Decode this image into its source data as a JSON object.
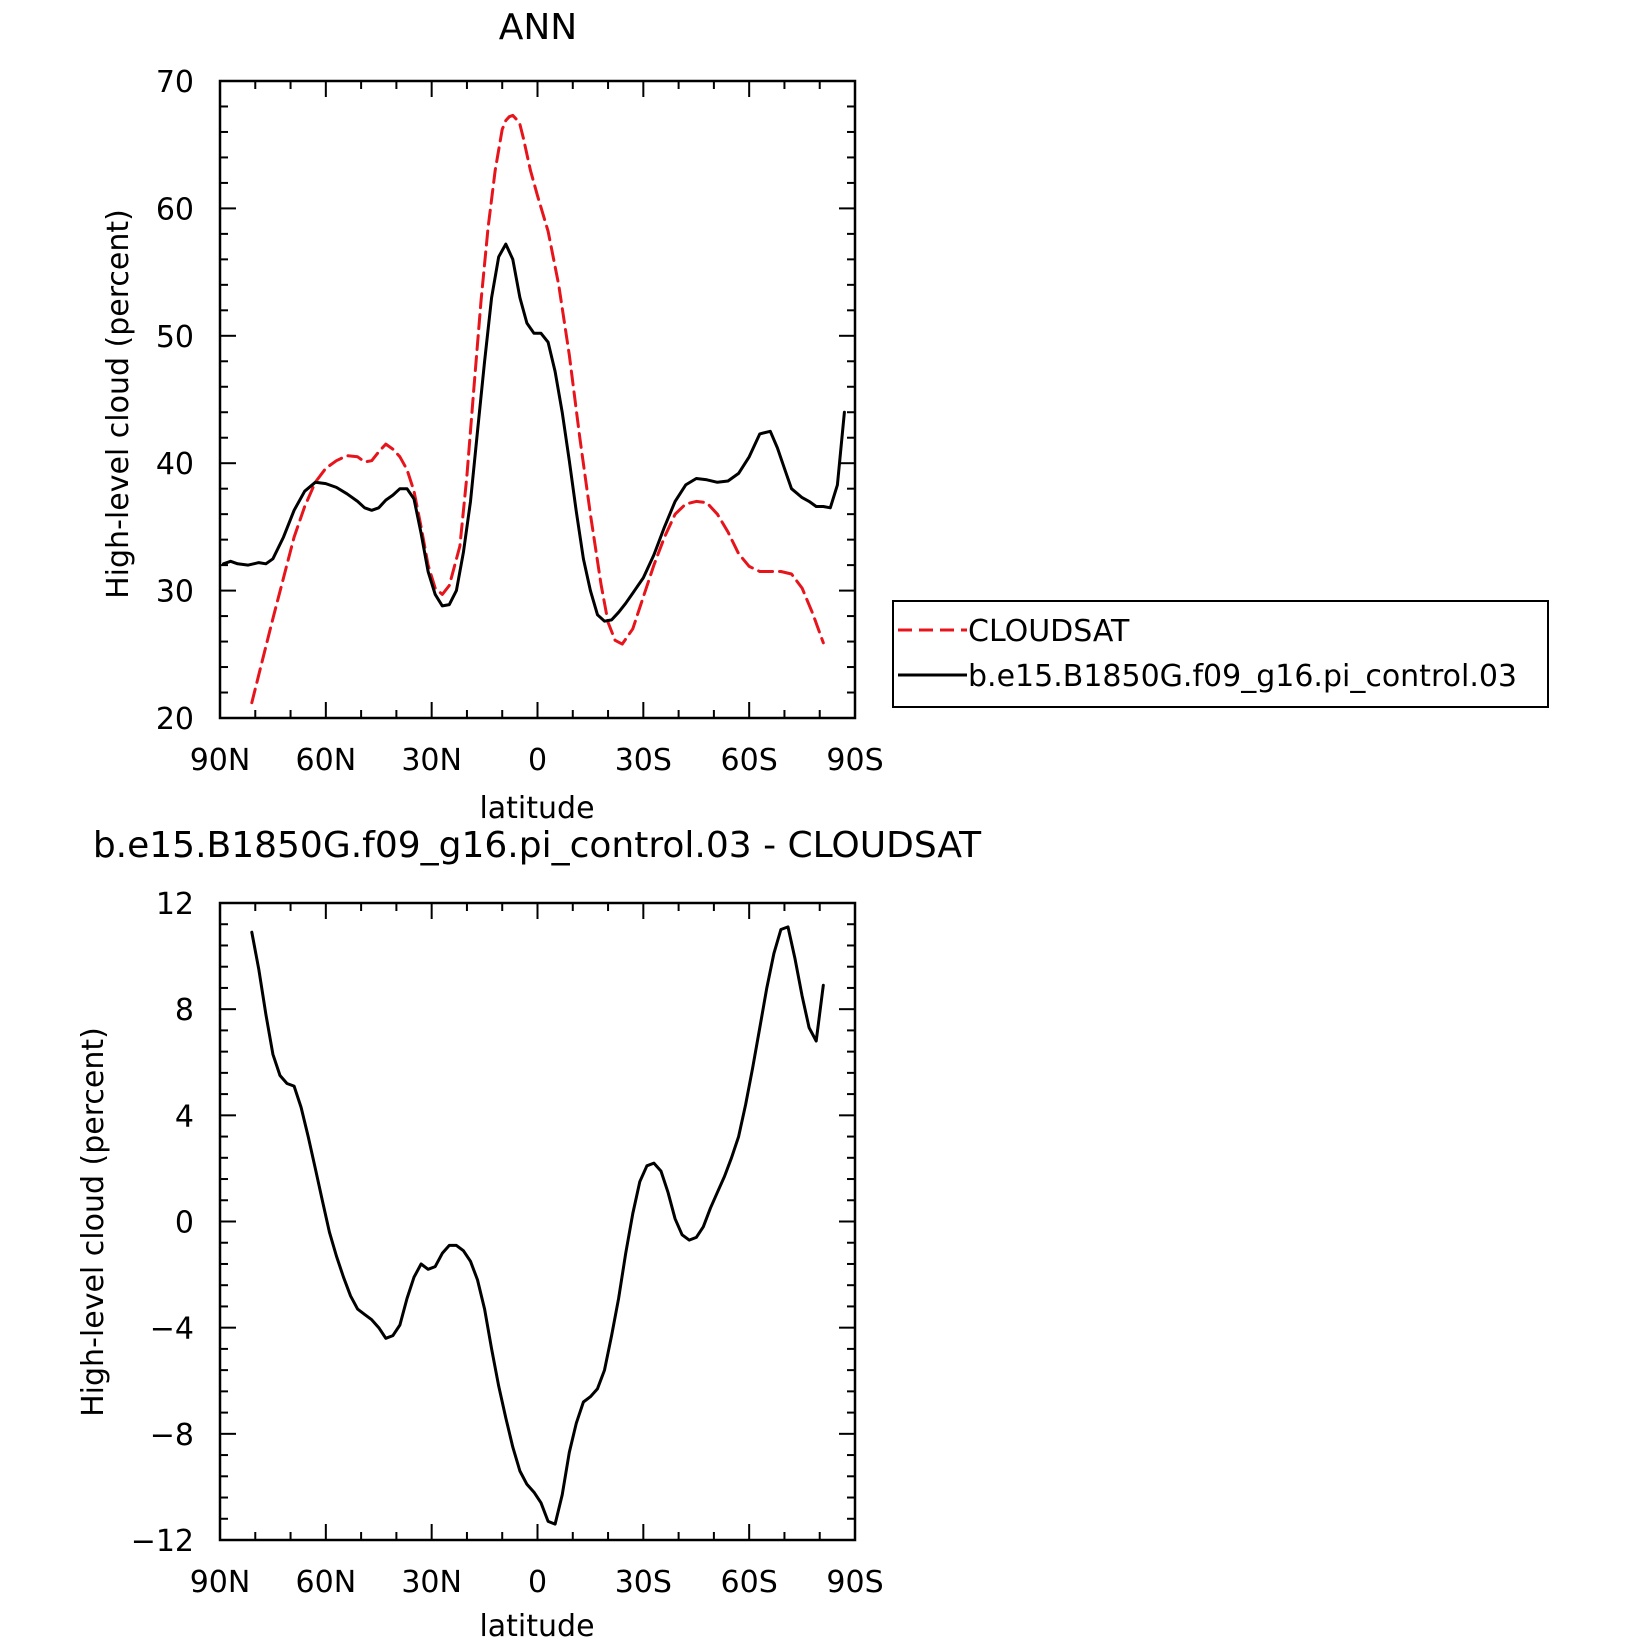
{
  "chart_data": [
    {
      "type": "line",
      "title": "ANN",
      "xlabel": "latitude",
      "ylabel": "High-level cloud (percent)",
      "xlim": [
        -90,
        90
      ],
      "ylim": [
        20,
        70
      ],
      "x_ticks": [
        -90,
        -60,
        -30,
        0,
        30,
        60,
        90
      ],
      "x_tick_labels": [
        "90N",
        "60N",
        "30N",
        "0",
        "30S",
        "60S",
        "90S"
      ],
      "y_ticks": [
        20,
        30,
        40,
        50,
        60,
        70
      ],
      "y_tick_labels": [
        "20",
        "30",
        "40",
        "50",
        "60",
        "70"
      ],
      "grid": false,
      "legend_position": "right",
      "series": [
        {
          "name": "CLOUDSAT",
          "color": "#e8141c",
          "dash": "dashed",
          "x": [
            -81,
            -78,
            -75,
            -72,
            -69,
            -66,
            -63,
            -60,
            -57,
            -54,
            -51,
            -49,
            -47,
            -45,
            -43,
            -41,
            -39,
            -37,
            -35,
            -33,
            -31,
            -29,
            -27,
            -25,
            -22,
            -20,
            -18,
            -16,
            -14,
            -12,
            -10,
            -9,
            -8,
            -7,
            -6,
            -5,
            -4,
            -2,
            0,
            3,
            6,
            9,
            12,
            15,
            18,
            20,
            22,
            24,
            27,
            30,
            33,
            36,
            39,
            42,
            45,
            48,
            51,
            54,
            57,
            60,
            63,
            66,
            69,
            72,
            75,
            78,
            81
          ],
          "y": [
            21.2,
            24.5,
            27.8,
            31,
            34.2,
            36.6,
            38.5,
            39.6,
            40.2,
            40.6,
            40.5,
            40.1,
            40.2,
            40.9,
            41.5,
            41.1,
            40.5,
            39.5,
            37.8,
            35,
            32,
            30.2,
            29.7,
            30.4,
            33.5,
            39,
            46,
            52.8,
            58.5,
            63,
            66.2,
            66.9,
            67.2,
            67.3,
            67,
            66.6,
            65.5,
            63,
            61,
            58.2,
            54,
            48.5,
            42,
            36,
            30.5,
            27.5,
            26.1,
            25.8,
            27,
            29.5,
            32,
            34.2,
            36,
            36.8,
            37,
            36.9,
            36,
            34.6,
            32.9,
            31.9,
            31.5,
            31.5,
            31.5,
            31.3,
            30.2,
            28.2,
            25.9
          ]
        },
        {
          "name": "b.e15.B1850G.f09_g16.pi_control.03",
          "color": "#000000",
          "dash": "solid",
          "x": [
            -89,
            -87,
            -85,
            -82,
            -79,
            -77,
            -75,
            -72,
            -69,
            -66,
            -63,
            -60,
            -57,
            -54,
            -51,
            -49,
            -47,
            -45,
            -43,
            -41,
            -39,
            -37,
            -35,
            -33,
            -31,
            -29,
            -27,
            -25,
            -23,
            -21,
            -19,
            -17,
            -15,
            -13,
            -11,
            -9,
            -7,
            -5,
            -3,
            -1,
            1,
            3,
            5,
            7,
            9,
            11,
            13,
            15,
            17,
            19,
            21,
            23,
            25,
            27,
            30,
            33,
            36,
            39,
            42,
            45,
            48,
            51,
            54,
            57,
            60,
            63,
            66,
            68,
            70,
            72,
            75,
            77,
            79,
            81,
            83,
            85,
            87
          ],
          "y": [
            32.1,
            32.3,
            32.1,
            32,
            32.2,
            32.1,
            32.5,
            34.2,
            36.3,
            37.8,
            38.5,
            38.4,
            38.1,
            37.6,
            37,
            36.5,
            36.3,
            36.5,
            37.1,
            37.5,
            38,
            38,
            37.2,
            34.5,
            31.5,
            29.7,
            28.8,
            28.9,
            30,
            33,
            37,
            42.5,
            48,
            53,
            56.2,
            57.2,
            56,
            53,
            51,
            50.2,
            50.2,
            49.5,
            47.2,
            44,
            40.2,
            36.2,
            32.5,
            30,
            28.1,
            27.6,
            27.7,
            28.3,
            29,
            29.8,
            31,
            32.8,
            35,
            37,
            38.3,
            38.8,
            38.7,
            38.5,
            38.6,
            39.2,
            40.5,
            42.3,
            42.5,
            41.2,
            39.6,
            38,
            37.3,
            37,
            36.6,
            36.6,
            36.5,
            38.3,
            44
          ]
        }
      ]
    },
    {
      "type": "line",
      "title": "b.e15.B1850G.f09_g16.pi_control.03 - CLOUDSAT",
      "xlabel": "latitude",
      "ylabel": "High-level cloud (percent)",
      "xlim": [
        -90,
        90
      ],
      "ylim": [
        -12,
        12
      ],
      "x_ticks": [
        -90,
        -60,
        -30,
        0,
        30,
        60,
        90
      ],
      "x_tick_labels": [
        "90N",
        "60N",
        "30N",
        "0",
        "30S",
        "60S",
        "90S"
      ],
      "y_ticks": [
        -12,
        -8,
        -4,
        0,
        4,
        8,
        12
      ],
      "y_tick_labels": [
        "−12",
        "−8",
        "−4",
        "0",
        "4",
        "8",
        "12"
      ],
      "grid": false,
      "series": [
        {
          "color": "#000000",
          "dash": "solid",
          "x": [
            -81,
            -79,
            -77,
            -75,
            -73,
            -71,
            -69,
            -67,
            -65,
            -63,
            -61,
            -59,
            -57,
            -55,
            -53,
            -51,
            -49,
            -47,
            -45,
            -43,
            -41,
            -39,
            -37,
            -35,
            -33,
            -31,
            -29,
            -27,
            -25,
            -23,
            -21,
            -19,
            -17,
            -15,
            -13,
            -11,
            -9,
            -7,
            -5,
            -3,
            -1,
            1,
            3,
            5,
            7,
            9,
            11,
            13,
            15,
            17,
            19,
            21,
            23,
            25,
            27,
            29,
            31,
            33,
            35,
            37,
            39,
            41,
            43,
            45,
            47,
            49,
            51,
            53,
            55,
            57,
            59,
            61,
            63,
            65,
            67,
            69,
            71,
            73,
            75,
            77,
            79,
            81
          ],
          "y": [
            10.9,
            9.5,
            7.8,
            6.3,
            5.5,
            5.2,
            5.1,
            4.3,
            3.2,
            2,
            0.8,
            -0.4,
            -1.3,
            -2.1,
            -2.8,
            -3.3,
            -3.5,
            -3.7,
            -4,
            -4.4,
            -4.3,
            -3.9,
            -2.9,
            -2.1,
            -1.6,
            -1.8,
            -1.7,
            -1.2,
            -0.9,
            -0.9,
            -1.1,
            -1.5,
            -2.2,
            -3.3,
            -4.8,
            -6.2,
            -7.4,
            -8.5,
            -9.4,
            -9.9,
            -10.2,
            -10.6,
            -11.3,
            -11.4,
            -10.3,
            -8.7,
            -7.6,
            -6.8,
            -6.6,
            -6.3,
            -5.6,
            -4.3,
            -2.9,
            -1.2,
            0.3,
            1.5,
            2.1,
            2.2,
            1.9,
            1.1,
            0.1,
            -0.5,
            -0.7,
            -0.6,
            -0.2,
            0.5,
            1.1,
            1.7,
            2.4,
            3.2,
            4.4,
            5.8,
            7.3,
            8.8,
            10.1,
            11,
            11.1,
            9.9,
            8.5,
            7.3,
            6.8,
            8.9
          ]
        }
      ]
    }
  ]
}
